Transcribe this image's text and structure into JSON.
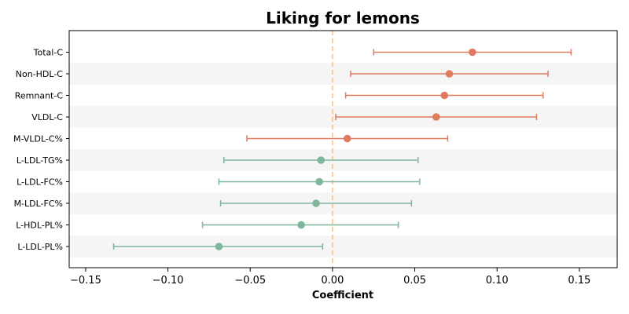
{
  "chart_data": {
    "type": "forest",
    "title": "Liking for lemons",
    "xlabel": "Coefficient",
    "ylabel": "",
    "xlim": [
      -0.16,
      0.173
    ],
    "xticks": [
      -0.15,
      -0.1,
      -0.05,
      0.0,
      0.05,
      0.1,
      0.15
    ],
    "xtick_labels": [
      "−0.15",
      "−0.10",
      "−0.05",
      "0.00",
      "0.05",
      "0.10",
      "0.15"
    ],
    "reference_line": 0.0,
    "grid": false,
    "colors": {
      "positive": "#e07b5f",
      "negative": "#7fb69b",
      "reference": "#f2c27a",
      "band": "#f5f5f5"
    },
    "rows": [
      {
        "label": "Total-C",
        "estimate": 0.085,
        "lower": 0.025,
        "upper": 0.145
      },
      {
        "label": "Non-HDL-C",
        "estimate": 0.071,
        "lower": 0.011,
        "upper": 0.131
      },
      {
        "label": "Remnant-C",
        "estimate": 0.068,
        "lower": 0.008,
        "upper": 0.128
      },
      {
        "label": "VLDL-C",
        "estimate": 0.063,
        "lower": 0.002,
        "upper": 0.124
      },
      {
        "label": "M-VLDL-C%",
        "estimate": 0.009,
        "lower": -0.052,
        "upper": 0.07
      },
      {
        "label": "L-LDL-TG%",
        "estimate": -0.007,
        "lower": -0.066,
        "upper": 0.052
      },
      {
        "label": "L-LDL-FC%",
        "estimate": -0.008,
        "lower": -0.069,
        "upper": 0.053
      },
      {
        "label": "M-LDL-FC%",
        "estimate": -0.01,
        "lower": -0.068,
        "upper": 0.048
      },
      {
        "label": "L-HDL-PL%",
        "estimate": -0.019,
        "lower": -0.079,
        "upper": 0.04
      },
      {
        "label": "L-LDL-PL%",
        "estimate": -0.069,
        "lower": -0.133,
        "upper": -0.006
      }
    ]
  }
}
